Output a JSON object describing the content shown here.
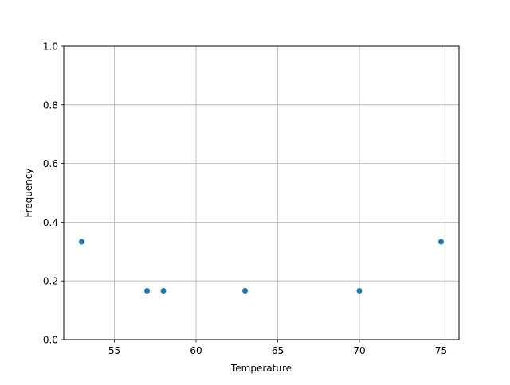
{
  "chart_data": {
    "type": "scatter",
    "title": "",
    "xlabel": "Temperature",
    "ylabel": "Frequency",
    "xlim": [
      51.9,
      76.1
    ],
    "ylim": [
      0,
      1.0
    ],
    "xticks": [
      55,
      60,
      65,
      70,
      75
    ],
    "xtick_labels": [
      "55",
      "60",
      "65",
      "70",
      "75"
    ],
    "yticks": [
      0,
      0.2,
      0.4,
      0.6,
      0.8,
      1.0
    ],
    "ytick_labels": [
      "0.0",
      "0.2",
      "0.4",
      "0.6",
      "0.8",
      "1.0"
    ],
    "grid": true,
    "marker_color": "#1f77b4",
    "points": [
      {
        "x": 53,
        "y": 0.3333
      },
      {
        "x": 57,
        "y": 0.1667
      },
      {
        "x": 58,
        "y": 0.1667
      },
      {
        "x": 63,
        "y": 0.1667
      },
      {
        "x": 70,
        "y": 0.1667
      },
      {
        "x": 75,
        "y": 0.3333
      }
    ]
  }
}
